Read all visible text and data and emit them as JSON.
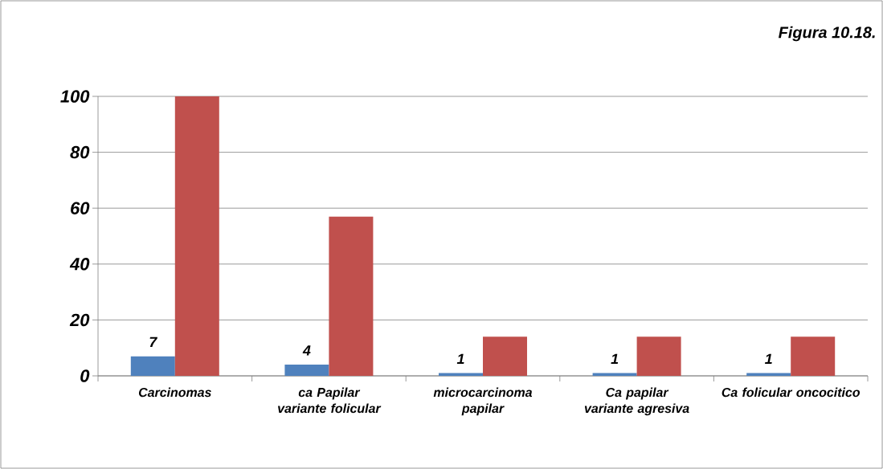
{
  "chart_data": {
    "type": "bar",
    "title": "Figura 10.18.",
    "categories": [
      "Carcinomas",
      "ca Papilar variante folicular",
      "microcarcinoma papilar",
      "Ca papilar variante agresiva",
      "Ca folicular oncocitico"
    ],
    "series": [
      {
        "color": "#4f81bd",
        "values": [
          7,
          4,
          1,
          1,
          1
        ],
        "value_labels": [
          "7",
          "4",
          "1",
          "1",
          "1"
        ]
      },
      {
        "color": "#c0504d",
        "values": [
          100,
          57,
          14,
          14,
          14
        ]
      }
    ],
    "ylim": [
      0,
      100
    ],
    "yticks": [
      0,
      20,
      40,
      60,
      80,
      100
    ],
    "grid": "y"
  }
}
